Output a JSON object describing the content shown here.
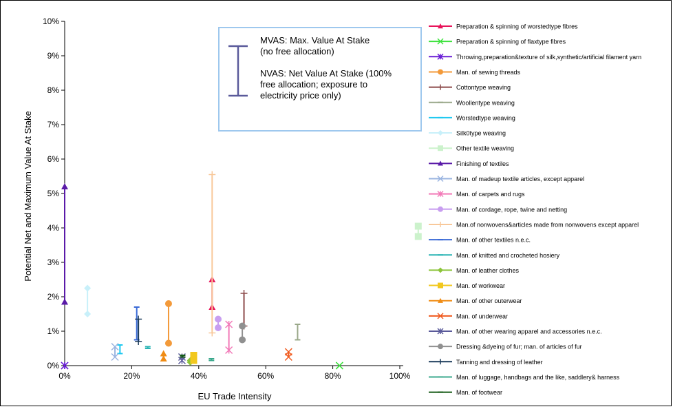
{
  "chart_data": {
    "type": "scatter",
    "xlabel": "EU Trade Intensity",
    "ylabel": "Potential Net and Maximum Value At Stake",
    "xlim": [
      0,
      1.0
    ],
    "ylim": [
      0,
      0.1
    ],
    "x_ticks": [
      "0%",
      "20%",
      "40%",
      "60%",
      "80%",
      "100%"
    ],
    "y_ticks": [
      "0%",
      "1%",
      "2%",
      "3%",
      "4%",
      "5%",
      "6%",
      "7%",
      "8%",
      "9%",
      "10%"
    ],
    "grid": false,
    "legend_position": "right",
    "annotation": {
      "mvas": "MVAS: Max. Value At Stake",
      "mvas_note": "(no free allocation)",
      "nvas": "NVAS: Net Value At Stake (100%",
      "nvas_note1": "free allocation; exposure to",
      "nvas_note2": "electricity price only)"
    },
    "series": [
      {
        "name": "Preparation & spinning of worstedtype fibres",
        "color": "#e8145a",
        "marker": "triangle",
        "x": 0.44,
        "nvas": 0.017,
        "mvas": 0.025
      },
      {
        "name": "Preparation & spinning of flaxtype fibres",
        "color": "#3ee23e",
        "marker": "x",
        "x": 0.82,
        "nvas": 0.0,
        "mvas": 0.0
      },
      {
        "name": "Throwing,preparation&texture of silk,synthetic/artificial filament yarn",
        "color": "#6a1fd6",
        "marker": "star",
        "x": 0.0,
        "nvas": 0.0,
        "mvas": 0.0
      },
      {
        "name": "Man. of sewing threads",
        "color": "#f39a3a",
        "marker": "circle",
        "x": 0.31,
        "nvas": 0.0065,
        "mvas": 0.018
      },
      {
        "name": "Cottontype weaving",
        "color": "#8c4a4a",
        "marker": "plus",
        "x": 0.535,
        "nvas": 0.0115,
        "mvas": 0.021
      },
      {
        "name": "Woollentype weaving",
        "color": "#9aa88a",
        "marker": "dash",
        "x": 0.695,
        "nvas": 0.0075,
        "mvas": 0.012
      },
      {
        "name": "Worstedtype weaving",
        "color": "#1ec8f0",
        "marker": "dash",
        "x": 0.165,
        "nvas": 0.0035,
        "mvas": 0.006
      },
      {
        "name": "Silk0type weaving",
        "color": "#c8f0fa",
        "marker": "diamond",
        "x": 0.068,
        "nvas": 0.015,
        "mvas": 0.0225
      },
      {
        "name": "Other textile weaving",
        "color": "#ccf2cc",
        "marker": "square",
        "x": 1.055,
        "nvas": 0.0375,
        "mvas": 0.0405
      },
      {
        "name": "Finishing of textiles",
        "color": "#5a1aa8",
        "marker": "triangle",
        "x": 0.0,
        "nvas": 0.0185,
        "mvas": 0.052
      },
      {
        "name": "Man. of madeup textile articles, except apparel",
        "color": "#9ab4e0",
        "marker": "x",
        "x": 0.15,
        "nvas": 0.0025,
        "mvas": 0.0055
      },
      {
        "name": "Man. of carpets and rugs",
        "color": "#f27ab8",
        "marker": "star",
        "x": 0.49,
        "nvas": 0.0045,
        "mvas": 0.012
      },
      {
        "name": "Man. of cordage, rope, twine and netting",
        "color": "#c89ef0",
        "marker": "circle",
        "x": 0.458,
        "nvas": 0.011,
        "mvas": 0.0135
      },
      {
        "name": "Man.of nonwovens&articles made from nonwovens except apparel",
        "color": "#f8c89a",
        "marker": "plus",
        "x": 0.44,
        "nvas": 0.0095,
        "mvas": 0.0555
      },
      {
        "name": "Man. of other textiles n.e.c.",
        "color": "#3a6ad6",
        "marker": "dash",
        "x": 0.215,
        "nvas": 0.0075,
        "mvas": 0.017
      },
      {
        "name": "Man. of knitted and crocheted hosiery",
        "color": "#2ab4b4",
        "marker": "dash",
        "x": 0.248,
        "nvas": 0.005,
        "mvas": 0.0055
      },
      {
        "name": "Man. of leather clothes",
        "color": "#8cc43a",
        "marker": "diamond",
        "x": 0.375,
        "nvas": 0.001,
        "mvas": 0.0015
      },
      {
        "name": "Man. of workwear",
        "color": "#f2c81e",
        "marker": "square",
        "x": 0.385,
        "nvas": 0.0015,
        "mvas": 0.003
      },
      {
        "name": "Man. of other outerwear",
        "color": "#f08c14",
        "marker": "triangle",
        "x": 0.295,
        "nvas": 0.002,
        "mvas": 0.0035
      },
      {
        "name": "Man. of underwear",
        "color": "#f05a1e",
        "marker": "x",
        "x": 0.668,
        "nvas": 0.0025,
        "mvas": 0.004
      },
      {
        "name": "Man. of other wearing apparel and accessories n.e.c.",
        "color": "#5a5a9a",
        "marker": "star",
        "x": 0.35,
        "nvas": 0.0015,
        "mvas": 0.0025
      },
      {
        "name": "Dressing &dyeing of fur; man. of articles of fur",
        "color": "#909090",
        "marker": "circle",
        "x": 0.53,
        "nvas": 0.0075,
        "mvas": 0.0115
      },
      {
        "name": "Tanning and dressing of leather",
        "color": "#1a3a5a",
        "marker": "plus",
        "x": 0.22,
        "nvas": 0.007,
        "mvas": 0.0135
      },
      {
        "name": "Man. of luggage, handbags and the like, saddlery& harness",
        "color": "#3aa88c",
        "marker": "dash",
        "x": 0.438,
        "nvas": 0.0015,
        "mvas": 0.002
      },
      {
        "name": "Man. of footwear",
        "color": "#145a14",
        "marker": "dash",
        "x": 0.352,
        "nvas": 0.0025,
        "mvas": 0.003
      }
    ]
  }
}
